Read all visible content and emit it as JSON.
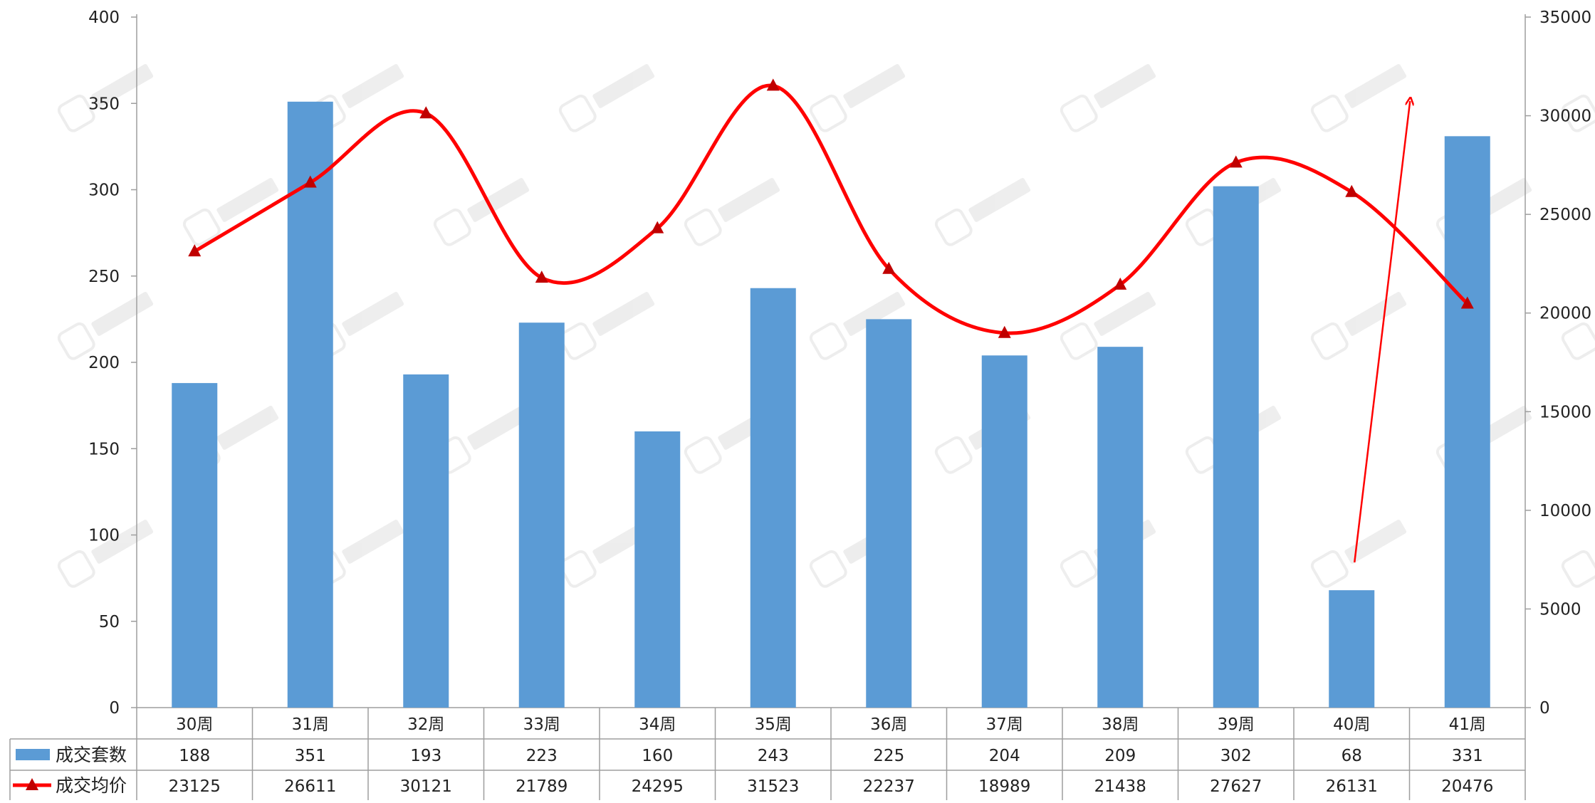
{
  "chart_data": {
    "type": "bar+line",
    "categories": [
      "30周",
      "31周",
      "32周",
      "33周",
      "34周",
      "35周",
      "36周",
      "37周",
      "38周",
      "39周",
      "40周",
      "41周"
    ],
    "series": [
      {
        "name": "成交套数",
        "type": "bar",
        "axis": "left",
        "color": "#5B9BD5",
        "values": [
          188,
          351,
          193,
          223,
          160,
          243,
          225,
          204,
          209,
          302,
          68,
          331
        ]
      },
      {
        "name": "成交均价",
        "type": "line",
        "axis": "right",
        "color": "#FF0000",
        "marker": "triangle",
        "smooth": true,
        "values": [
          23125,
          26611,
          30121,
          21789,
          24295,
          31523,
          22237,
          18989,
          21438,
          27627,
          26131,
          20476
        ]
      }
    ],
    "y_left": {
      "range": [
        0,
        400
      ],
      "ticks": [
        0,
        50,
        100,
        150,
        200,
        250,
        300,
        350,
        400
      ]
    },
    "y_right": {
      "range": [
        0,
        35000
      ],
      "ticks": [
        0,
        5000,
        10000,
        15000,
        20000,
        25000,
        30000,
        35000
      ]
    },
    "data_table": true,
    "annotation": {
      "type": "arrow",
      "color": "#FF0000",
      "from_category": "40周",
      "direction": "up"
    },
    "watermark": "icon-watermark"
  }
}
